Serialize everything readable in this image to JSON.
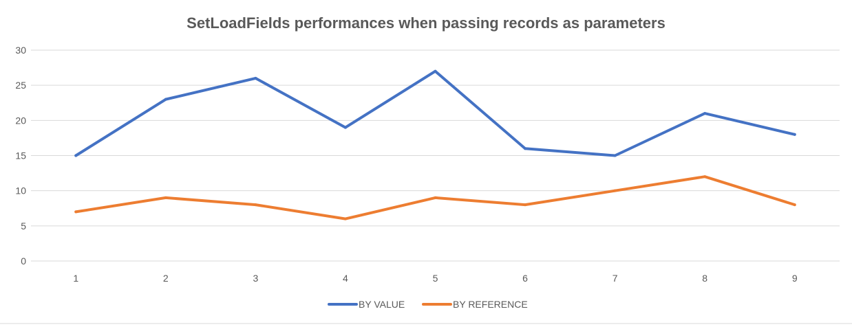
{
  "chart_data": {
    "type": "line",
    "title": "SetLoadFields performances when passing records as parameters",
    "xlabel": "",
    "ylabel": "",
    "categories": [
      "1",
      "2",
      "3",
      "4",
      "5",
      "6",
      "7",
      "8",
      "9"
    ],
    "ylim": [
      0,
      30
    ],
    "yticks": [
      0,
      5,
      10,
      15,
      20,
      25,
      30
    ],
    "grid": true,
    "legend_position": "bottom",
    "series": [
      {
        "name": "BY VALUE",
        "color": "#4472C4",
        "values": [
          15,
          23,
          26,
          19,
          27,
          16,
          15,
          21,
          18
        ]
      },
      {
        "name": "BY REFERENCE",
        "color": "#ED7D31",
        "values": [
          7,
          9,
          8,
          6,
          9,
          8,
          10,
          12,
          8
        ]
      }
    ]
  }
}
